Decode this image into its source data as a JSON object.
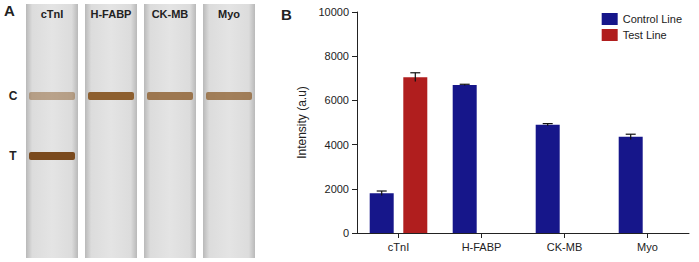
{
  "panel_a": {
    "label": "A",
    "line_labels": [
      "C",
      "T"
    ]
  },
  "chart_data": {
    "type": "bar",
    "title": "B",
    "categories": [
      "cTnI",
      "H-FABP",
      "CK-MB",
      "Myo"
    ],
    "y_label": "Intensity (a.u)",
    "series": [
      {
        "name": "Control Line",
        "color": "#16168a",
        "values": [
          1800,
          6700,
          4900,
          4350
        ],
        "errors": [
          100,
          30,
          50,
          120
        ]
      },
      {
        "name": "Test Line",
        "color": "#b01e1e",
        "values": [
          7050,
          0,
          0,
          0
        ],
        "errors": [
          200,
          0,
          0,
          0
        ]
      }
    ],
    "ylim": [
      0,
      10000
    ],
    "yticks": [
      0,
      2000,
      4000,
      6000,
      8000,
      10000
    ],
    "grid": false,
    "legend": "upper right"
  }
}
